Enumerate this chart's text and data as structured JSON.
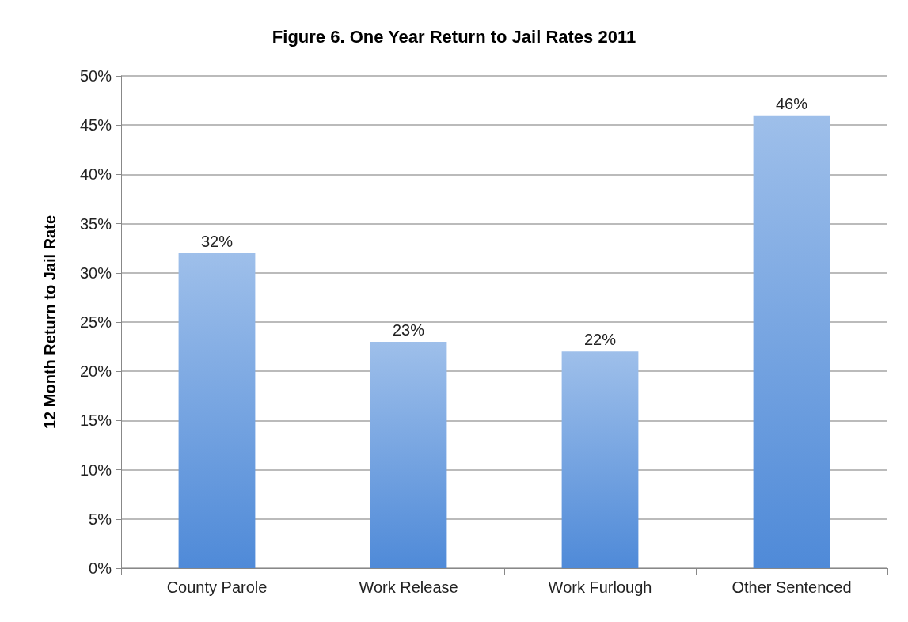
{
  "chart_data": {
    "type": "bar",
    "title": "Figure 6. One Year Return to Jail Rates 2011",
    "ylabel": "12 Month Return to Jail Rate",
    "categories": [
      "County Parole",
      "Work Release",
      "Work Furlough",
      "Other Sentenced"
    ],
    "values": [
      32,
      23,
      22,
      46
    ],
    "color": "#4f8ad8",
    "value_labels": [
      "32%",
      "23%",
      "22%",
      "46%"
    ],
    "ylim": [
      0,
      50
    ],
    "yticks": [
      {
        "value": 0,
        "label": "0%"
      },
      {
        "value": 5,
        "label": "5%"
      },
      {
        "value": 10,
        "label": "10%"
      },
      {
        "value": 15,
        "label": "15%"
      },
      {
        "value": 20,
        "label": "20%"
      },
      {
        "value": 25,
        "label": "25%"
      },
      {
        "value": 30,
        "label": "30%"
      },
      {
        "value": 35,
        "label": "35%"
      },
      {
        "value": 40,
        "label": "40%"
      },
      {
        "value": 45,
        "label": "45%"
      },
      {
        "value": 50,
        "label": "50%"
      }
    ],
    "grid": "y"
  }
}
